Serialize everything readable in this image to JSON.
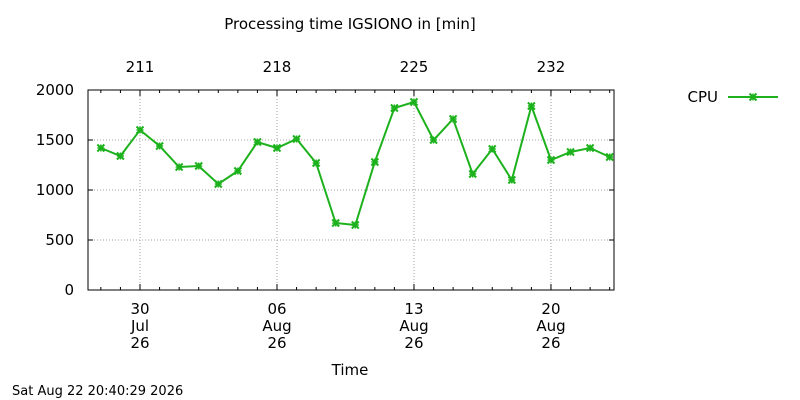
{
  "chart_data": {
    "type": "line",
    "title": "Processing time IGSIONO in [min]",
    "xlabel": "Time",
    "ylabel": "",
    "ylim": [
      0,
      2000
    ],
    "yticks": [
      0,
      500,
      1000,
      1500,
      2000
    ],
    "grid": true,
    "legend_position": "top-right",
    "x_day_offsets": [
      -2,
      -1,
      0,
      1,
      2,
      3,
      4,
      5,
      6,
      7,
      8,
      9,
      10,
      11,
      12,
      13,
      14,
      15,
      16,
      17,
      18,
      19,
      20,
      21,
      22,
      23,
      24
    ],
    "bottom_ticks": [
      {
        "day": "30",
        "month": "Jul",
        "year": "26",
        "offset": 0
      },
      {
        "day": "06",
        "month": "Aug",
        "year": "26",
        "offset": 7
      },
      {
        "day": "13",
        "month": "Aug",
        "year": "26",
        "offset": 14
      },
      {
        "day": "20",
        "month": "Aug",
        "year": "26",
        "offset": 21
      }
    ],
    "top_ticks": [
      {
        "label": "211",
        "offset": 0
      },
      {
        "label": "218",
        "offset": 7
      },
      {
        "label": "225",
        "offset": 14
      },
      {
        "label": "232",
        "offset": 21
      }
    ],
    "series": [
      {
        "name": "CPU",
        "color": "#1db21d",
        "values": [
          1420,
          1340,
          1600,
          1440,
          1230,
          1240,
          1060,
          1190,
          1480,
          1420,
          1510,
          1270,
          670,
          650,
          1280,
          1820,
          1880,
          1500,
          1710,
          1160,
          1410,
          1100,
          1840,
          1300,
          1380,
          1420,
          1330
        ]
      }
    ]
  },
  "footer": {
    "timestamp": "Sat Aug 22 20:40:29 2026"
  }
}
